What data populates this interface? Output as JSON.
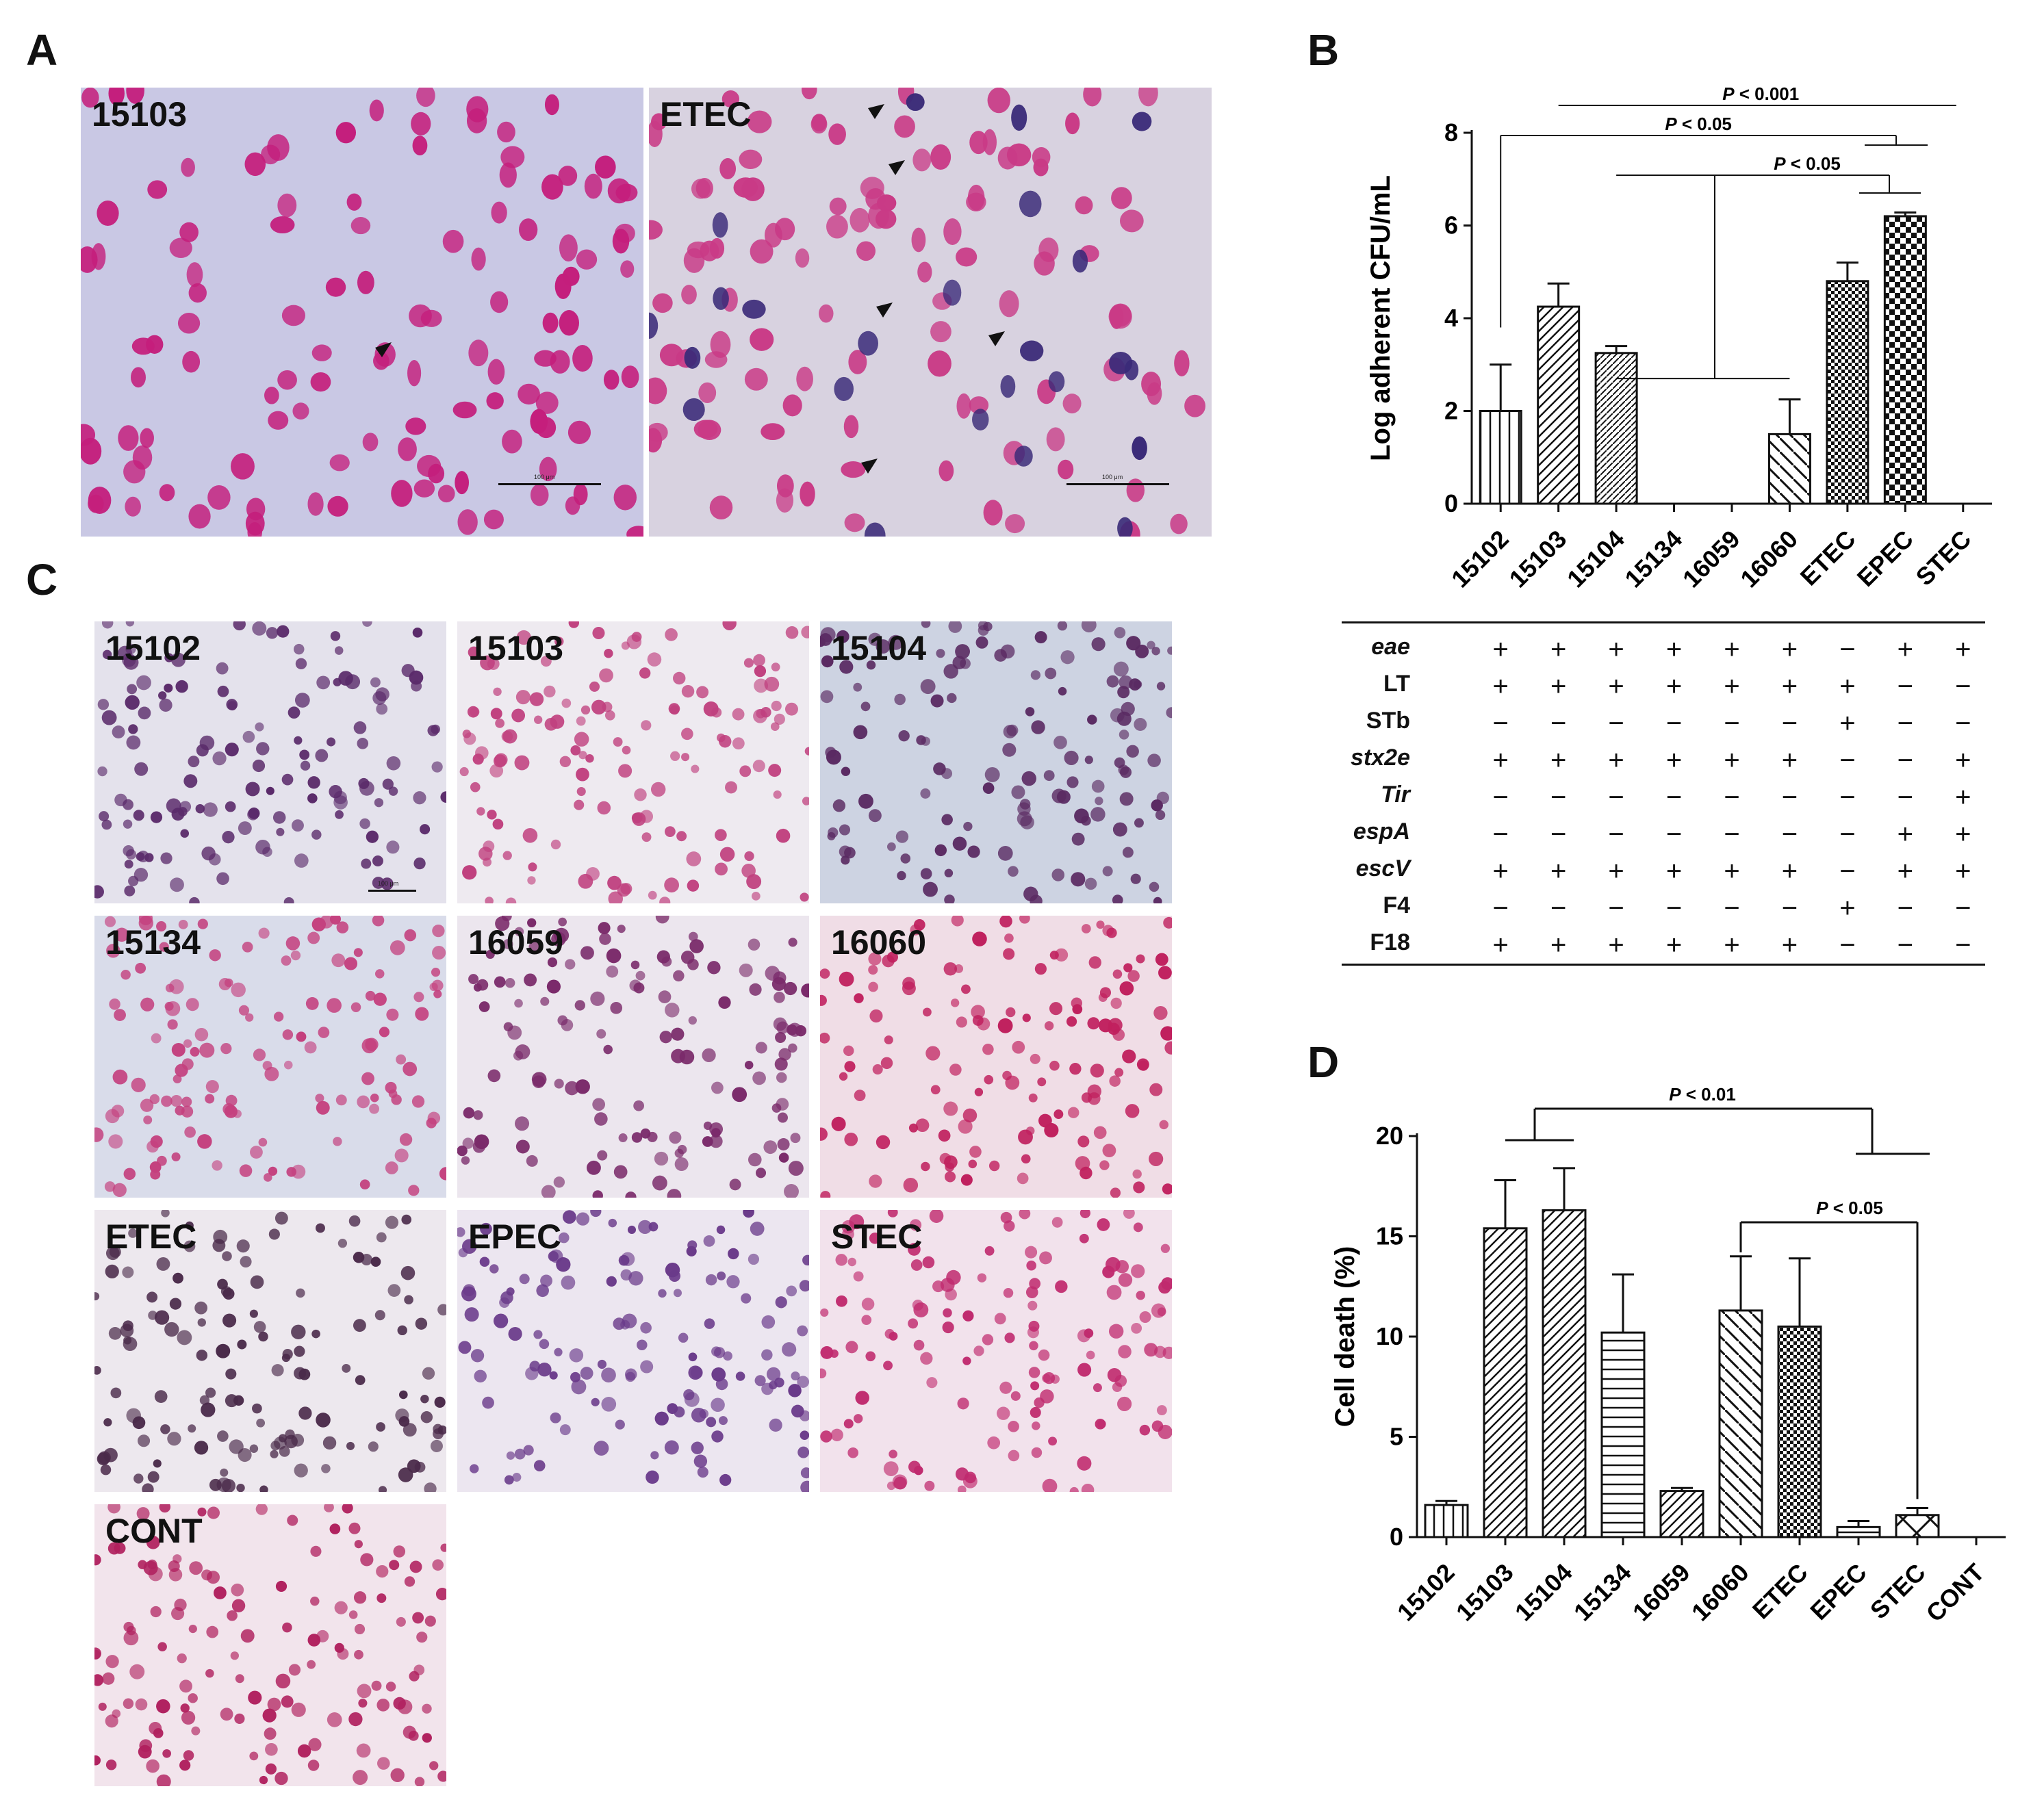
{
  "panels": {
    "a": {
      "letter": "A",
      "images": [
        {
          "label": "15103",
          "scale": "100 μm"
        },
        {
          "label": "ETEC",
          "scale": "100 μm"
        }
      ]
    },
    "b": {
      "letter": "B"
    },
    "c": {
      "letter": "C",
      "images": [
        {
          "label": "15102",
          "scale": "100 μm"
        },
        {
          "label": "15103"
        },
        {
          "label": "15104"
        },
        {
          "label": "15134"
        },
        {
          "label": "16059"
        },
        {
          "label": "16060"
        },
        {
          "label": "ETEC"
        },
        {
          "label": "EPEC"
        },
        {
          "label": "STEC"
        },
        {
          "label": "CONT"
        }
      ]
    },
    "d": {
      "letter": "D"
    }
  },
  "chart_data": [
    {
      "type": "bar",
      "panel": "B",
      "categories": [
        "15102",
        "15103",
        "15104",
        "15134",
        "16059",
        "16060",
        "ETEC",
        "EPEC",
        "STEC"
      ],
      "values": [
        2.0,
        4.25,
        3.25,
        0,
        0,
        1.5,
        4.8,
        6.2,
        0
      ],
      "errors": [
        1.0,
        0.5,
        0.15,
        0,
        0,
        0.75,
        0.4,
        0.08,
        0
      ],
      "ylabel": "Log adherent CFU/mL",
      "ylim": [
        0,
        8
      ],
      "yticks": [
        0,
        2,
        4,
        6,
        8
      ],
      "patterns": [
        "vertical",
        "diag-up",
        "diag-up-dense",
        "none",
        "none",
        "diag-down",
        "check-small",
        "check-large",
        "none"
      ],
      "significance": [
        "P < 0.001",
        "P < 0.05",
        "P < 0.05"
      ],
      "gene_table": {
        "rows": [
          {
            "gene": "eae",
            "italic": true,
            "values": [
              "+",
              "+",
              "+",
              "+",
              "+",
              "+",
              "−",
              "+",
              "+"
            ]
          },
          {
            "gene": "LT",
            "italic": false,
            "values": [
              "+",
              "+",
              "+",
              "+",
              "+",
              "+",
              "+",
              "−",
              "−"
            ]
          },
          {
            "gene": "STb",
            "italic": false,
            "values": [
              "−",
              "−",
              "−",
              "−",
              "−",
              "−",
              "+",
              "−",
              "−"
            ]
          },
          {
            "gene": "stx2e",
            "italic": true,
            "values": [
              "+",
              "+",
              "+",
              "+",
              "+",
              "+",
              "−",
              "−",
              "+"
            ]
          },
          {
            "gene": "Tir",
            "italic": true,
            "values": [
              "−",
              "−",
              "−",
              "−",
              "−",
              "−",
              "−",
              "−",
              "+"
            ]
          },
          {
            "gene": "espA",
            "italic": true,
            "values": [
              "−",
              "−",
              "−",
              "−",
              "−",
              "−",
              "−",
              "+",
              "+"
            ]
          },
          {
            "gene": "escV",
            "italic": true,
            "values": [
              "+",
              "+",
              "+",
              "+",
              "+",
              "+",
              "−",
              "+",
              "+"
            ]
          },
          {
            "gene": "F4",
            "italic": false,
            "values": [
              "−",
              "−",
              "−",
              "−",
              "−",
              "−",
              "+",
              "−",
              "−"
            ]
          },
          {
            "gene": "F18",
            "italic": false,
            "values": [
              "+",
              "+",
              "+",
              "+",
              "+",
              "+",
              "−",
              "−",
              "−"
            ]
          }
        ]
      }
    },
    {
      "type": "bar",
      "panel": "D",
      "categories": [
        "15102",
        "15103",
        "15104",
        "15134",
        "16059",
        "16060",
        "ETEC",
        "EPEC",
        "STEC",
        "CONT"
      ],
      "values": [
        1.6,
        15.4,
        16.3,
        10.2,
        2.3,
        11.3,
        10.5,
        0.5,
        1.1,
        0
      ],
      "errors": [
        0.2,
        2.4,
        2.1,
        2.9,
        0.15,
        2.7,
        3.4,
        0.3,
        0.35,
        0
      ],
      "ylabel": "Cell death (%)",
      "ylim": [
        0,
        20
      ],
      "yticks": [
        0,
        5,
        10,
        15,
        20
      ],
      "patterns": [
        "vertical",
        "diag-up",
        "diag-up",
        "horizontal",
        "diag-up",
        "diag-down",
        "check-small",
        "horizontal",
        "cross",
        "none"
      ],
      "significance": [
        "P < 0.01",
        "P < 0.05"
      ]
    }
  ]
}
